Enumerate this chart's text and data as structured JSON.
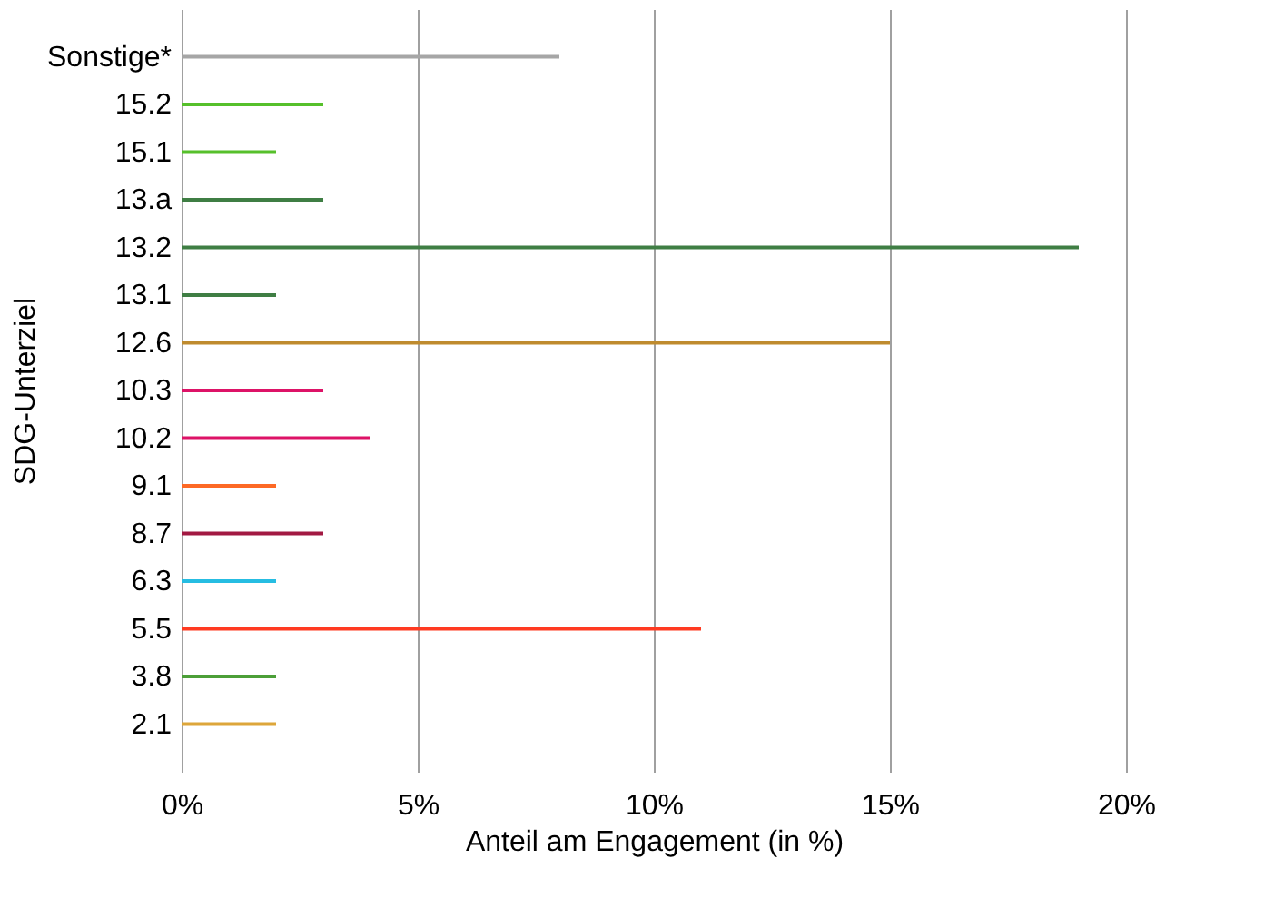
{
  "chart_data": {
    "type": "bar",
    "orientation": "horizontal",
    "xlabel": "Anteil am Engagement (in %)",
    "ylabel": "SDG-Unterziel",
    "categories": [
      "Sonstige*",
      "15.2",
      "15.1",
      "13.a",
      "13.2",
      "13.1",
      "12.6",
      "10.3",
      "10.2",
      "9.1",
      "8.7",
      "6.3",
      "5.5",
      "3.8",
      "2.1"
    ],
    "values": [
      8,
      3,
      2,
      3,
      19,
      2,
      15,
      3,
      4,
      2,
      3,
      2,
      11,
      2,
      2
    ],
    "colors": [
      "#a6a6a6",
      "#56c02b",
      "#56c02b",
      "#3f7e44",
      "#3f7e44",
      "#3f7e44",
      "#bf8b2e",
      "#dd1367",
      "#dd1367",
      "#fd6925",
      "#a21942",
      "#26bde2",
      "#ff3a21",
      "#4c9f38",
      "#dda63a"
    ],
    "xlim": [
      0,
      20
    ],
    "xticks": [
      {
        "value": 0,
        "label": "0%"
      },
      {
        "value": 5,
        "label": "5%"
      },
      {
        "value": 10,
        "label": "10%"
      },
      {
        "value": 15,
        "label": "15%"
      },
      {
        "value": 20,
        "label": "20%"
      }
    ],
    "grid": "x"
  }
}
